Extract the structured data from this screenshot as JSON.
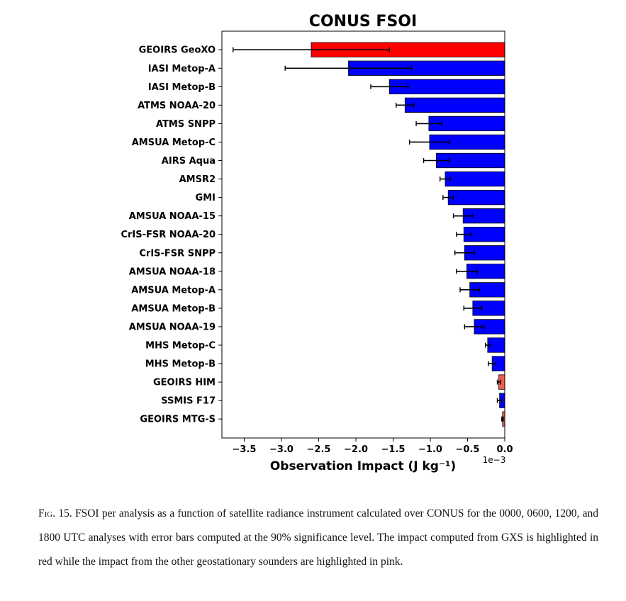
{
  "chart_data": {
    "type": "bar",
    "orientation": "horizontal",
    "title": "CONUS FSOI",
    "xlabel": "Observation Impact (J kg⁻¹)",
    "x_offset_label": "1e−3",
    "xlim": [
      -3.8,
      0.0
    ],
    "xticks": [
      -3.5,
      -3.0,
      -2.5,
      -2.0,
      -1.5,
      -1.0,
      -0.5,
      0.0
    ],
    "xtick_labels": [
      "−3.5",
      "−3.0",
      "−2.5",
      "−2.0",
      "−1.5",
      "−1.0",
      "−0.5",
      "0.0"
    ],
    "grid": false,
    "colors": {
      "gxs": "#ff0000",
      "geo": "#f05a4a",
      "other": "#0000ff",
      "edge": "#000000"
    },
    "categories": [
      "GEOIRS GeoXO",
      "IASI Metop-A",
      "IASI Metop-B",
      "ATMS NOAA-20",
      "ATMS SNPP",
      "AMSUA Metop-C",
      "AIRS Aqua",
      "AMSR2",
      "GMI",
      "AMSUA NOAA-15",
      "CrIS-FSR NOAA-20",
      "CrIS-FSR SNPP",
      "AMSUA NOAA-18",
      "AMSUA Metop-A",
      "AMSUA Metop-B",
      "AMSUA NOAA-19",
      "MHS Metop-C",
      "MHS Metop-B",
      "GEOIRS HIM",
      "SSMIS F17",
      "GEOIRS MTG-S"
    ],
    "values": [
      -2.6,
      -2.1,
      -1.55,
      -1.34,
      -1.02,
      -1.01,
      -0.92,
      -0.8,
      -0.76,
      -0.56,
      -0.55,
      -0.54,
      -0.51,
      -0.47,
      -0.43,
      -0.41,
      -0.23,
      -0.17,
      -0.08,
      -0.07,
      -0.03
    ],
    "error": [
      1.05,
      0.85,
      0.25,
      0.12,
      0.17,
      0.27,
      0.17,
      0.07,
      0.07,
      0.13,
      0.1,
      0.13,
      0.14,
      0.13,
      0.12,
      0.13,
      0.03,
      0.05,
      0.02,
      0.03,
      0.01
    ],
    "color_keys": [
      "gxs",
      "other",
      "other",
      "other",
      "other",
      "other",
      "other",
      "other",
      "other",
      "other",
      "other",
      "other",
      "other",
      "other",
      "other",
      "other",
      "other",
      "other",
      "geo",
      "other",
      "geo"
    ]
  },
  "caption": {
    "label": "Fig. 15.",
    "text": "FSOI per analysis as a function of satellite radiance instrument calculated over CONUS for the 0000, 0600, 1200, and 1800 UTC analyses with error bars computed at the 90% significance level. The impact computed from GXS is highlighted in red while the impact from the other geostationary sounders are highlighted in pink."
  }
}
